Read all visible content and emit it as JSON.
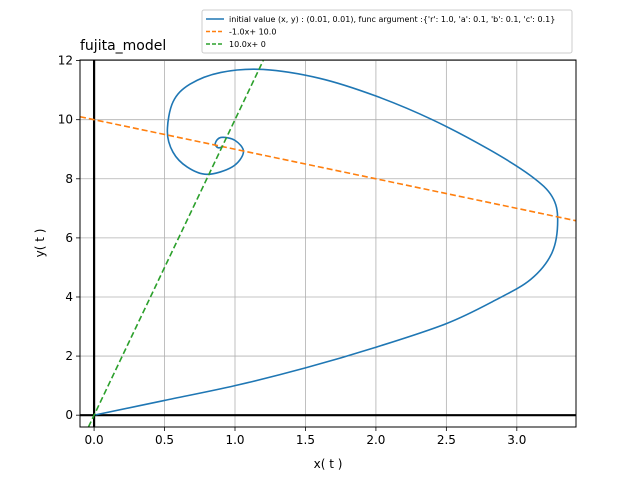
{
  "chart_data": {
    "type": "line",
    "title": "fujita_model",
    "xlabel": "x( t )",
    "ylabel": "y( t )",
    "xlim": [
      -0.1,
      3.42
    ],
    "ylim": [
      -0.4,
      12.02
    ],
    "xticks": [
      0.0,
      0.5,
      1.0,
      1.5,
      2.0,
      2.5,
      3.0
    ],
    "xtick_labels": [
      "0.0",
      "0.5",
      "1.0",
      "1.5",
      "2.0",
      "2.5",
      "3.0"
    ],
    "yticks": [
      0,
      2,
      4,
      6,
      8,
      10,
      12
    ],
    "ytick_labels": [
      "0",
      "2",
      "4",
      "6",
      "8",
      "10",
      "12"
    ],
    "grid": true,
    "legend_position": "above plot, right",
    "series": [
      {
        "name": "initial value (x, y) : (0.01, 0.01), func argument :{'r': 1.0, 'a': 0.1, 'b': 0.1, 'c': 0.1}",
        "color": "#1f77b4",
        "style": "solid",
        "x": [
          0.01,
          0.5,
          1.0,
          1.5,
          2.0,
          2.5,
          2.85,
          3.1,
          3.25,
          3.29,
          3.25,
          3.1,
          2.8,
          2.4,
          2.0,
          1.6,
          1.2,
          0.9,
          0.68,
          0.56,
          0.52,
          0.56,
          0.66,
          0.8,
          0.98,
          1.06,
          1.0,
          0.9,
          0.86,
          0.88,
          0.92
        ],
        "y": [
          0.01,
          0.5,
          1.0,
          1.6,
          2.3,
          3.1,
          3.9,
          4.6,
          5.5,
          6.6,
          7.4,
          8.1,
          9.0,
          10.0,
          10.8,
          11.4,
          11.7,
          11.6,
          11.2,
          10.6,
          9.6,
          8.9,
          8.4,
          8.15,
          8.4,
          8.9,
          9.3,
          9.4,
          9.2,
          9.05,
          9.1
        ]
      },
      {
        "name": "-1.0x+ 10.0",
        "color": "#ff7f0e",
        "style": "dashed",
        "x": [
          -0.1,
          3.42
        ],
        "y": [
          10.1,
          6.58
        ]
      },
      {
        "name": "10.0x+ 0",
        "color": "#2ca02c",
        "style": "dashed",
        "x": [
          -0.04,
          1.202
        ],
        "y": [
          -0.4,
          12.02
        ]
      }
    ],
    "axis_lines": [
      {
        "orientation": "vertical",
        "x": 0
      },
      {
        "orientation": "horizontal",
        "y": 0
      }
    ]
  }
}
